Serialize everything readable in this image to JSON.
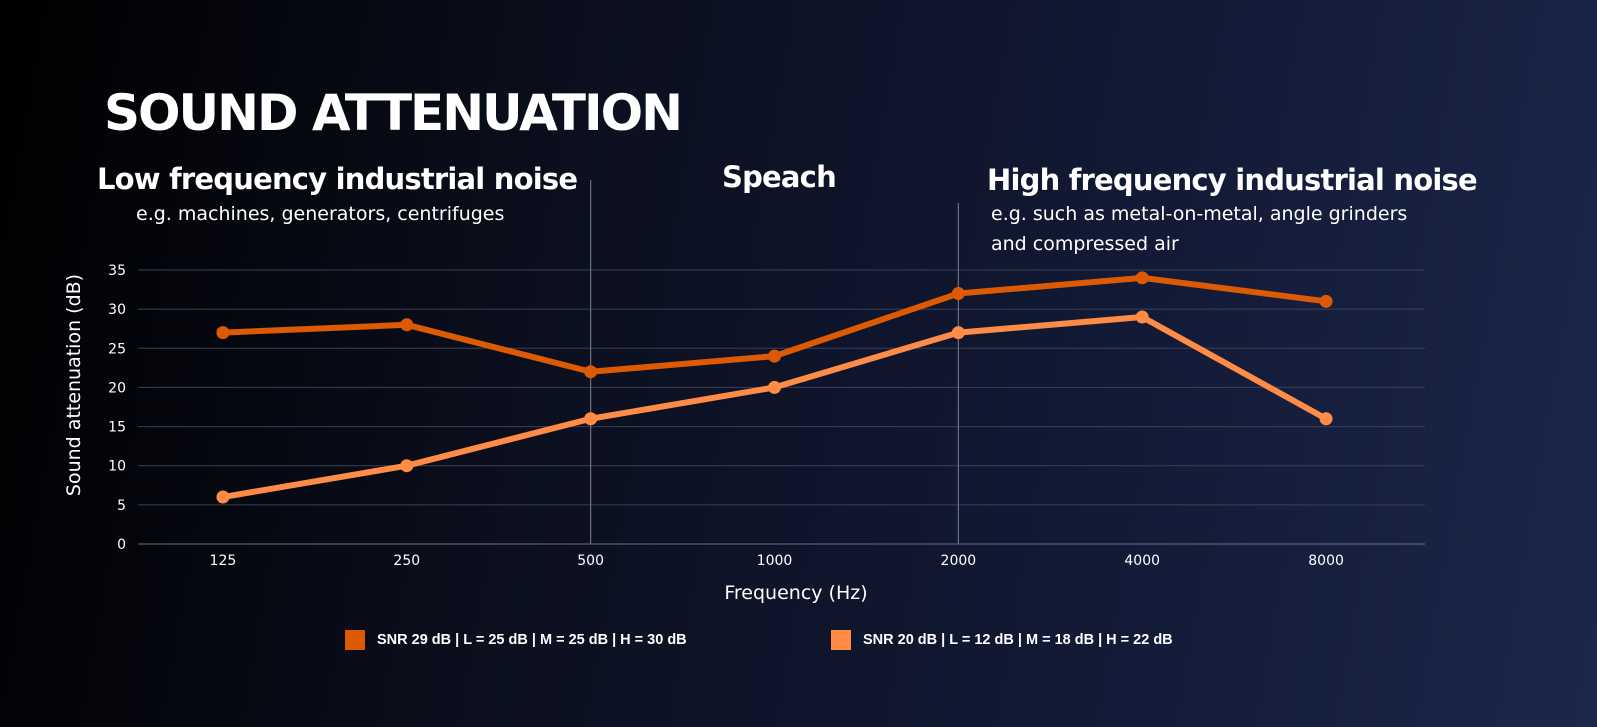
{
  "title": "SOUND ATTENUATION",
  "sections": [
    {
      "title": "Low frequency industrial noise",
      "subtitle_lines": [
        "e.g. machines, generators, centrifuges"
      ]
    },
    {
      "title": "Speach",
      "subtitle_lines": []
    },
    {
      "title": "High frequency industrial noise",
      "subtitle_lines": [
        "e.g. such as metal-on-metal, angle grinders",
        "and compressed air"
      ]
    }
  ],
  "colors": {
    "series_dark": "#dc5a04",
    "series_light": "#ff8c46",
    "grid": "#3a4056",
    "divider": "#6b7080",
    "text": "#ffffff"
  },
  "chart_data": {
    "type": "line",
    "title": "SOUND ATTENUATION",
    "xlabel": "Frequency (Hz)",
    "ylabel": "Sound attenuation (dB)",
    "categories": [
      "125",
      "250",
      "500",
      "1000",
      "2000",
      "4000",
      "8000"
    ],
    "ylim": [
      0,
      35
    ],
    "yticks": [
      0,
      5,
      10,
      15,
      20,
      25,
      30,
      35
    ],
    "grid": true,
    "legend_position": "bottom",
    "dividers_after_categories": [
      "500",
      "2000"
    ],
    "series": [
      {
        "name": "SNR 29 dB |  L = 25 dB |  M = 25 dB |  H = 30 dB",
        "color": "#dc5a04",
        "values": [
          27,
          28,
          22,
          24,
          32,
          34,
          31
        ]
      },
      {
        "name": "SNR  20 dB | L = 12 dB | M = 18 dB | H = 22 dB",
        "color": "#ff8c46",
        "values": [
          6,
          10,
          16,
          20,
          27,
          29,
          16
        ]
      }
    ]
  }
}
